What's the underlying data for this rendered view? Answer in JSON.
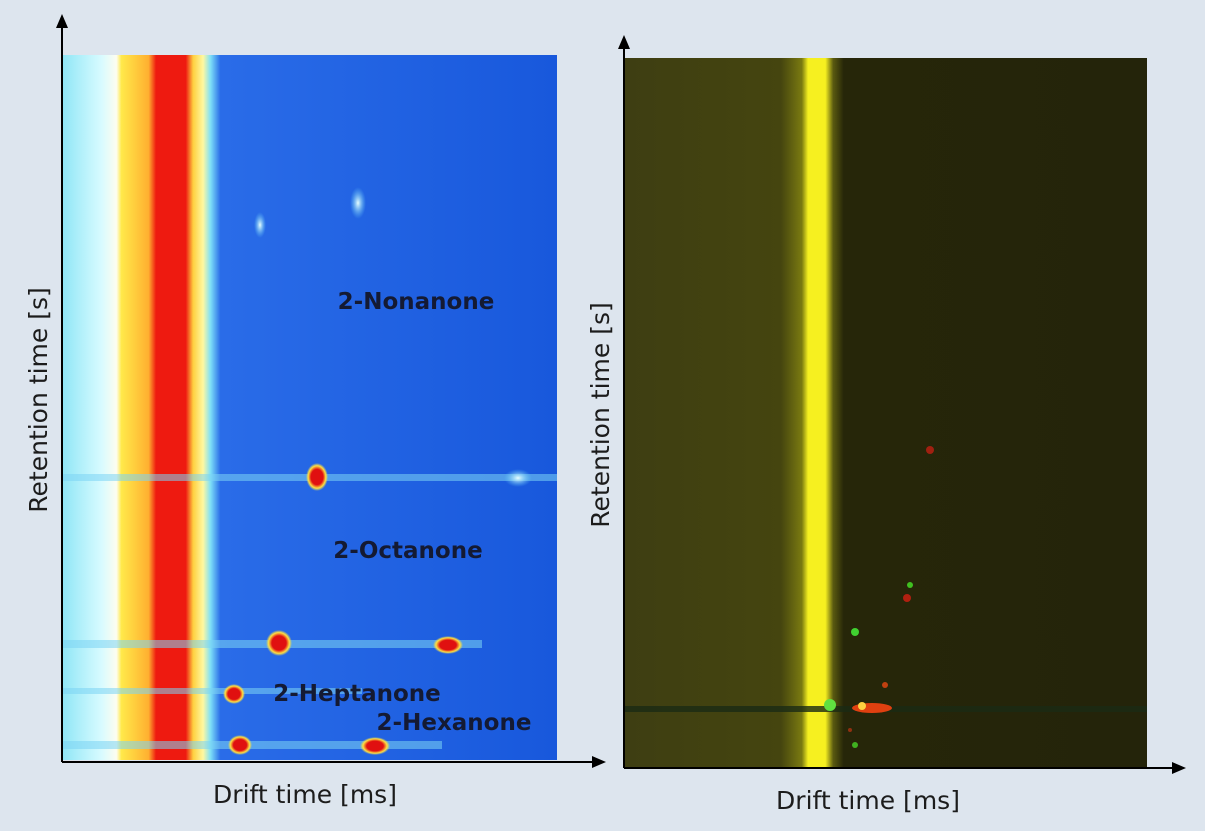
{
  "panels": [
    {
      "y_axis_label": "Retention time [s]",
      "x_axis_label": "Drift time [ms]",
      "annotations": [
        "2-Nonanone",
        "2-Octanone",
        "2-Heptanone",
        "2-Hexanone"
      ]
    },
    {
      "y_axis_label": "Retention time [s]",
      "x_axis_label": "Drift time [ms]"
    }
  ]
}
